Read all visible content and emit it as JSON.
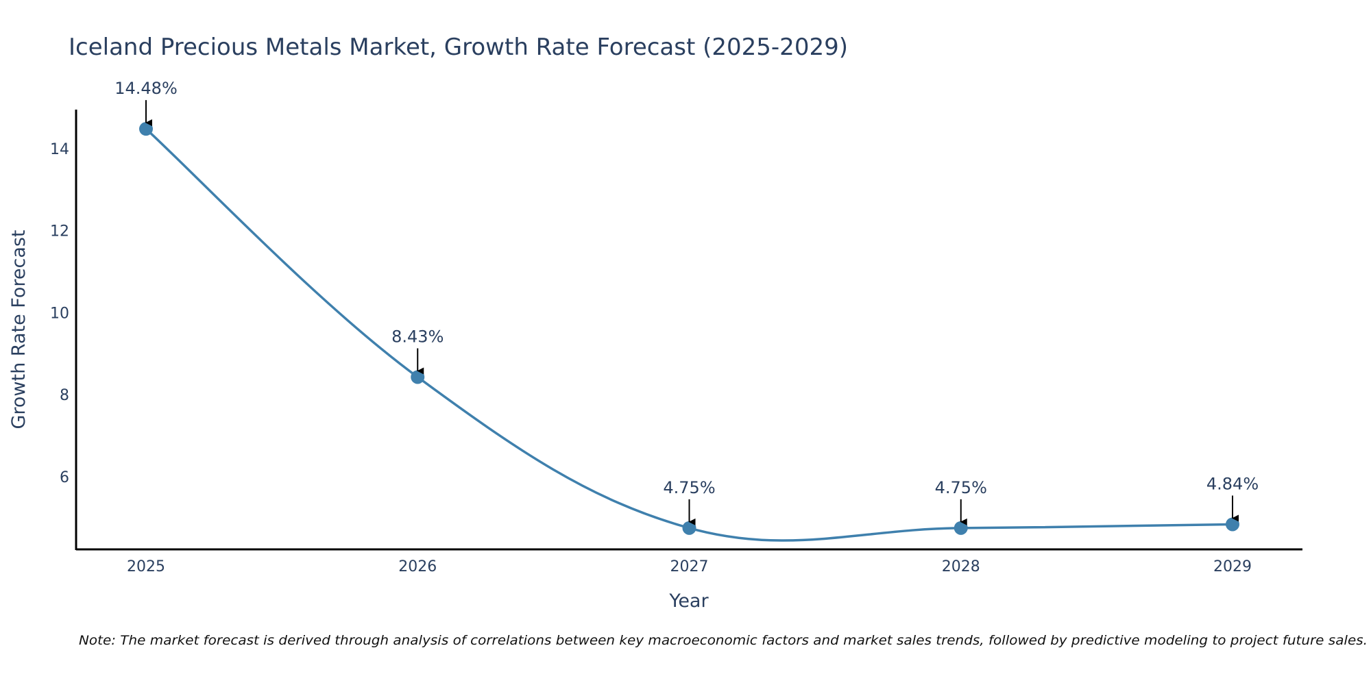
{
  "chart_data": {
    "type": "line",
    "title": "Iceland Precious Metals Market, Growth Rate Forecast (2025-2029)",
    "xlabel": "Year",
    "ylabel": "Growth Rate Forecast",
    "categories": [
      "2025",
      "2026",
      "2027",
      "2028",
      "2029"
    ],
    "series": [
      {
        "name": "Growth Rate Forecast",
        "values": [
          14.48,
          8.43,
          4.75,
          4.75,
          4.84
        ],
        "labels": [
          "14.48%",
          "8.43%",
          "4.75%",
          "4.75%",
          "4.84%"
        ]
      }
    ],
    "yticks": [
      6,
      8,
      10,
      12,
      14
    ],
    "ytick_labels": [
      "6",
      "8",
      "10",
      "12",
      14
    ],
    "ylim": [
      4.23,
      14.95
    ],
    "grid": false,
    "line_shape": "spline",
    "colors": {
      "line": "#3f80ad",
      "marker": "#3f80ad",
      "arrow": "#000000",
      "axis": "#000000",
      "text": "#2a3f5f"
    },
    "note": "Note: The market forecast is derived through analysis of correlations between key macroeconomic factors and market sales trends, followed by predictive modeling to project future sales."
  }
}
